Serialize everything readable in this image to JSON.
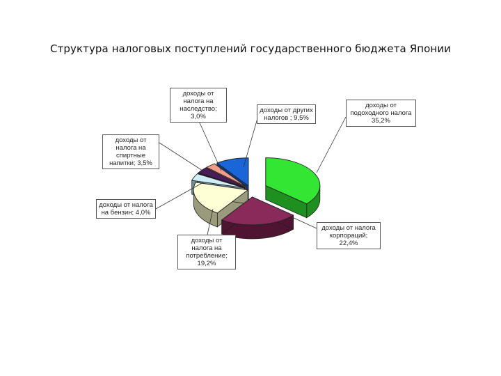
{
  "title": "Структура налоговых поступлений государственного бюджета Японии",
  "chart_data": {
    "type": "pie",
    "title": "Структура налоговых поступлений государственного бюджета Японии",
    "slices": [
      {
        "label": "доходы от подоходного налога\n35,2%",
        "value": 35.2,
        "color": "#33e633",
        "side": "#1f8f1f"
      },
      {
        "label": "доходы от налога корпораций; 22,4%",
        "value": 22.4,
        "color": "#8a2a5a",
        "side": "#4f1431"
      },
      {
        "label": "доходы от налога на потребление; 19,2%",
        "value": 19.2,
        "color": "#ffffd6",
        "side": "#9a9a7c"
      },
      {
        "label": "доходы от налога на бензин; 4,0%",
        "value": 4.0,
        "color": "#cfeff7",
        "side": "#6f8e96"
      },
      {
        "label": "доходы от налога на спиртные напитки; 3,5%",
        "value": 3.5,
        "color": "#4a1a5c",
        "side": "#2a0d35"
      },
      {
        "label": "доходы от налога на наследство; 3,0%",
        "value": 3.0,
        "color": "#f29b8a",
        "side": "#9c5a4e"
      },
      {
        "label": "доходы от других налогов ; 9,5%",
        "value": 9.5,
        "color": "#1a66d9",
        "side": "#0d3a80"
      }
    ]
  }
}
